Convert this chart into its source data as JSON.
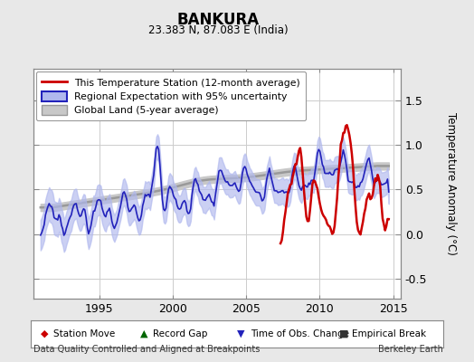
{
  "title": "BANKURA",
  "subtitle": "23.383 N, 87.083 E (India)",
  "ylabel": "Temperature Anomaly (°C)",
  "xlabel_left": "Data Quality Controlled and Aligned at Breakpoints",
  "xlabel_right": "Berkeley Earth",
  "xlim": [
    1990.5,
    2015.5
  ],
  "ylim": [
    -0.72,
    1.85
  ],
  "yticks": [
    -0.5,
    0.0,
    0.5,
    1.0,
    1.5
  ],
  "xticks": [
    1995,
    2000,
    2005,
    2010,
    2015
  ],
  "outer_bg": "#e8e8e8",
  "plot_bg": "#ffffff",
  "red_color": "#cc0000",
  "blue_color": "#2222bb",
  "blue_fill_color": "#b0b8ee",
  "gray_line_color": "#999999",
  "gray_fill_color": "#c8c8c8",
  "legend_items": [
    "This Temperature Station (12-month average)",
    "Regional Expectation with 95% uncertainty",
    "Global Land (5-year average)"
  ],
  "bottom_legend": [
    {
      "marker": "D",
      "color": "#cc0000",
      "label": "Station Move"
    },
    {
      "marker": "^",
      "color": "#006600",
      "label": "Record Gap"
    },
    {
      "marker": "v",
      "color": "#2222bb",
      "label": "Time of Obs. Change"
    },
    {
      "marker": "s",
      "color": "#333333",
      "label": "Empirical Break"
    }
  ]
}
